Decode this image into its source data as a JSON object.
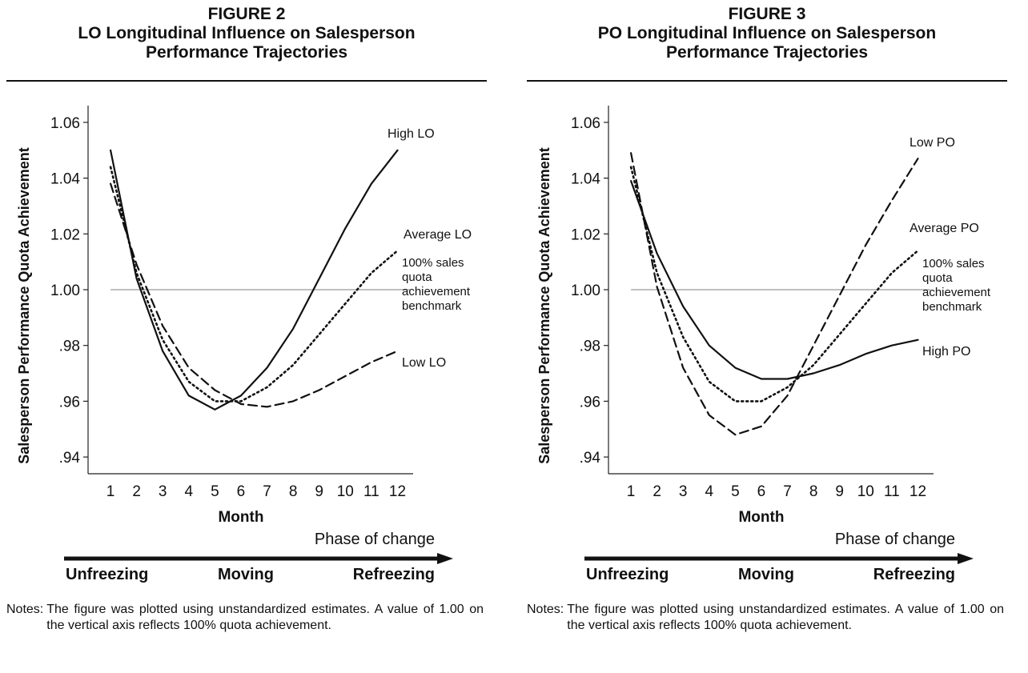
{
  "chart_data": [
    {
      "type": "line",
      "title": "FIGURE 2",
      "subtitle": "LO Longitudinal Influence on Salesperson Performance Trajectories",
      "xlabel": "Month",
      "ylabel": "Salesperson Performance Quota Achievement",
      "x": [
        1,
        2,
        3,
        4,
        5,
        6,
        7,
        8,
        9,
        10,
        11,
        12
      ],
      "x_tick_labels": [
        "1",
        "2",
        "3",
        "4",
        "5",
        "6",
        "7",
        "8",
        "9",
        "10",
        "11",
        "12"
      ],
      "y_ticks": [
        0.94,
        0.96,
        0.98,
        1.0,
        1.02,
        1.04,
        1.06
      ],
      "y_tick_labels": [
        ".94",
        ".96",
        ".98",
        "1.00",
        "1.02",
        "1.04",
        "1.06"
      ],
      "ylim": [
        0.934,
        1.066
      ],
      "xlim": [
        0.2,
        12.6
      ],
      "reference_line": {
        "value": 1.0,
        "color": "#9a9a9a"
      },
      "series": [
        {
          "name": "High LO",
          "style": "solid",
          "values": [
            1.05,
            1.004,
            0.978,
            0.962,
            0.957,
            0.962,
            0.972,
            0.986,
            1.004,
            1.022,
            1.038,
            1.05
          ]
        },
        {
          "name": "Average LO",
          "style": "dotted",
          "values": [
            1.044,
            1.006,
            0.982,
            0.967,
            0.96,
            0.96,
            0.965,
            0.973,
            0.984,
            0.995,
            1.006,
            1.014
          ]
        },
        {
          "name": "Low LO",
          "style": "dashed",
          "values": [
            1.038,
            1.009,
            0.987,
            0.972,
            0.964,
            0.959,
            0.958,
            0.96,
            0.964,
            0.969,
            0.974,
            0.978
          ]
        }
      ],
      "annotations": [
        {
          "text": "High LO",
          "series": "High LO"
        },
        {
          "text": "Average LO",
          "series": "Average LO"
        },
        {
          "text": [
            "100% sales",
            "quota",
            "achievement",
            "benchmark"
          ]
        },
        {
          "text": "Low LO",
          "series": "Low LO"
        }
      ],
      "phase_label": "Phase of change",
      "phases": [
        "Unfreezing",
        "Moving",
        "Refreezing"
      ],
      "notes_label": "Notes:",
      "notes_text": "The figure was plotted using unstandardized estimates. A value of 1.00 on the vertical axis reflects 100% quota achievement."
    },
    {
      "type": "line",
      "title": "FIGURE 3",
      "subtitle": "PO Longitudinal Influence on Salesperson Performance Trajectories",
      "xlabel": "Month",
      "ylabel": "Salesperson Performance Quota Achievement",
      "x": [
        1,
        2,
        3,
        4,
        5,
        6,
        7,
        8,
        9,
        10,
        11,
        12
      ],
      "x_tick_labels": [
        "1",
        "2",
        "3",
        "4",
        "5",
        "6",
        "7",
        "8",
        "9",
        "10",
        "11",
        "12"
      ],
      "y_ticks": [
        0.94,
        0.96,
        0.98,
        1.0,
        1.02,
        1.04,
        1.06
      ],
      "y_tick_labels": [
        ".94",
        ".96",
        ".98",
        "1.00",
        "1.02",
        "1.04",
        "1.06"
      ],
      "ylim": [
        0.934,
        1.066
      ],
      "xlim": [
        0.2,
        12.6
      ],
      "reference_line": {
        "value": 1.0,
        "color": "#9a9a9a"
      },
      "series": [
        {
          "name": "Low PO",
          "style": "dashed",
          "values": [
            1.049,
            1.001,
            0.972,
            0.955,
            0.948,
            0.951,
            0.962,
            0.98,
            0.998,
            1.016,
            1.032,
            1.047
          ]
        },
        {
          "name": "Average PO",
          "style": "dotted",
          "values": [
            1.044,
            1.006,
            0.983,
            0.967,
            0.96,
            0.96,
            0.965,
            0.973,
            0.984,
            0.995,
            1.006,
            1.014
          ]
        },
        {
          "name": "High PO",
          "style": "solid",
          "values": [
            1.039,
            1.013,
            0.994,
            0.98,
            0.972,
            0.968,
            0.968,
            0.97,
            0.973,
            0.977,
            0.98,
            0.982
          ]
        }
      ],
      "annotations": [
        {
          "text": "Low PO",
          "series": "Low PO"
        },
        {
          "text": "Average PO",
          "series": "Average PO"
        },
        {
          "text": [
            "100% sales",
            "quota",
            "achievement",
            "benchmark"
          ]
        },
        {
          "text": "High PO",
          "series": "High PO"
        }
      ],
      "phase_label": "Phase of change",
      "phases": [
        "Unfreezing",
        "Moving",
        "Refreezing"
      ],
      "notes_label": "Notes:",
      "notes_text": "The figure was plotted using unstandardized estimates. A value of 1.00 on the vertical axis reflects 100% quota achievement."
    }
  ]
}
